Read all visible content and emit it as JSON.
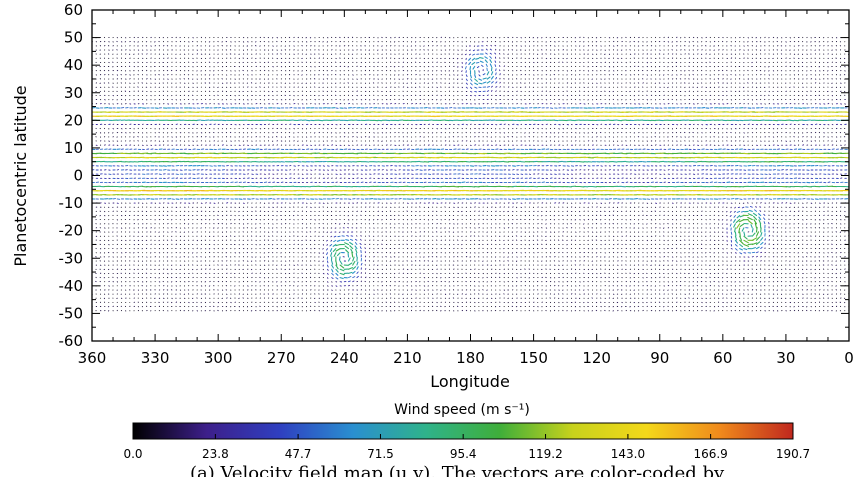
{
  "chart_data": {
    "type": "vector-field",
    "xlabel": "Longitude",
    "ylabel": "Planetocentric latitude",
    "xlim": [
      360,
      0
    ],
    "ylim": [
      -60,
      60
    ],
    "x_ticks": [
      "360",
      "330",
      "300",
      "270",
      "240",
      "210",
      "180",
      "150",
      "120",
      "90",
      "60",
      "30",
      "0"
    ],
    "y_ticks": [
      "60",
      "50",
      "40",
      "30",
      "20",
      "10",
      "0",
      "-10",
      "-20",
      "-30",
      "-40",
      "-50",
      "-60"
    ],
    "data_extent": {
      "longitude": [
        0,
        360
      ],
      "latitude": [
        -50,
        50
      ]
    },
    "jets": [
      {
        "latitude": 22,
        "peak_speed": 150,
        "direction": "eastward"
      },
      {
        "latitude": 7,
        "peak_speed": 120,
        "direction": "eastward"
      },
      {
        "latitude": -6,
        "peak_speed": 140,
        "direction": "eastward"
      }
    ],
    "vortices": [
      {
        "longitude": 48,
        "latitude": -20,
        "peak_speed": 110
      },
      {
        "longitude": 240,
        "latitude": -30,
        "peak_speed": 95
      },
      {
        "longitude": 175,
        "latitude": 38,
        "peak_speed": 70
      }
    ],
    "colorbar": {
      "title": "Wind speed (m s⁻¹)",
      "ticks": [
        "0.0",
        "23.8",
        "47.7",
        "71.5",
        "95.4",
        "119.2",
        "143.0",
        "166.9",
        "190.7"
      ],
      "range": [
        0,
        190.7
      ],
      "colors": [
        "#000000",
        "#3d1f8a",
        "#2f3fc0",
        "#2a8fd0",
        "#2fb38a",
        "#3fae3a",
        "#c8d21c",
        "#f3d81a",
        "#f08a1c",
        "#c0281e"
      ]
    }
  },
  "caption": {
    "text": "(a) Velocity field map (u,v). The vectors are color-coded by"
  }
}
